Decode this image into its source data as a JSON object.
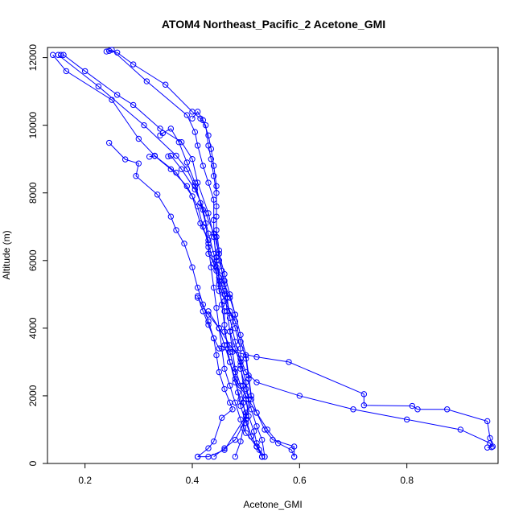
{
  "chart_data": {
    "type": "line",
    "title": "ATOM4 Northeast_Pacific_2 Acetone_GMI",
    "xlabel": "Acetone_GMI",
    "ylabel": "Altitude (m)",
    "xlim": [
      0.13,
      0.97
    ],
    "ylim": [
      0,
      12300
    ],
    "xticks": [
      0.2,
      0.4,
      0.6,
      0.8
    ],
    "yticks": [
      0,
      2000,
      4000,
      6000,
      8000,
      10000,
      12000
    ],
    "grid": false,
    "legend": "none",
    "color": "#0000ff",
    "marker": "open-circle",
    "series": [
      {
        "points": [
          [
            0.14,
            12080
          ],
          [
            0.165,
            11600
          ],
          [
            0.25,
            10750
          ],
          [
            0.3,
            9600
          ],
          [
            0.33,
            9100
          ],
          [
            0.37,
            8600
          ],
          [
            0.4,
            7900
          ],
          [
            0.415,
            7100
          ],
          [
            0.43,
            6600
          ],
          [
            0.43,
            6200
          ],
          [
            0.445,
            5800
          ],
          [
            0.46,
            5300
          ],
          [
            0.47,
            4900
          ],
          [
            0.48,
            4400
          ],
          [
            0.47,
            3900
          ],
          [
            0.48,
            3400
          ],
          [
            0.49,
            2900
          ],
          [
            0.495,
            2300
          ],
          [
            0.5,
            1900
          ],
          [
            0.505,
            1400
          ],
          [
            0.515,
            950
          ],
          [
            0.52,
            600
          ],
          [
            0.525,
            400
          ],
          [
            0.53,
            200
          ]
        ]
      },
      {
        "points": [
          [
            0.15,
            12080
          ],
          [
            0.225,
            11150
          ],
          [
            0.31,
            10000
          ],
          [
            0.37,
            9100
          ],
          [
            0.39,
            8700
          ],
          [
            0.405,
            8200
          ],
          [
            0.42,
            7500
          ],
          [
            0.43,
            6800
          ],
          [
            0.44,
            6200
          ],
          [
            0.445,
            5700
          ],
          [
            0.45,
            5100
          ],
          [
            0.46,
            4500
          ],
          [
            0.46,
            3900
          ],
          [
            0.47,
            3300
          ],
          [
            0.48,
            2700
          ],
          [
            0.485,
            2100
          ],
          [
            0.49,
            1700
          ],
          [
            0.5,
            1200
          ],
          [
            0.51,
            800
          ],
          [
            0.52,
            500
          ],
          [
            0.535,
            200
          ]
        ]
      },
      {
        "points": [
          [
            0.155,
            12080
          ],
          [
            0.16,
            12080
          ],
          [
            0.2,
            11600
          ],
          [
            0.26,
            10900
          ],
          [
            0.29,
            10600
          ],
          [
            0.34,
            9900
          ],
          [
            0.38,
            9500
          ],
          [
            0.4,
            9000
          ],
          [
            0.41,
            8300
          ],
          [
            0.43,
            7400
          ],
          [
            0.44,
            6700
          ],
          [
            0.445,
            6100
          ],
          [
            0.45,
            5500
          ],
          [
            0.46,
            5000
          ],
          [
            0.47,
            4500
          ],
          [
            0.48,
            4000
          ],
          [
            0.49,
            3400
          ],
          [
            0.49,
            2800
          ],
          [
            0.5,
            2200
          ],
          [
            0.51,
            1600
          ],
          [
            0.52,
            1100
          ],
          [
            0.53,
            700
          ],
          [
            0.535,
            200
          ]
        ]
      },
      {
        "points": [
          [
            0.24,
            12180
          ],
          [
            0.25,
            12230
          ],
          [
            0.315,
            11300
          ],
          [
            0.39,
            10300
          ],
          [
            0.405,
            9800
          ],
          [
            0.41,
            9400
          ],
          [
            0.42,
            8800
          ],
          [
            0.43,
            8300
          ],
          [
            0.44,
            7800
          ],
          [
            0.44,
            7200
          ],
          [
            0.44,
            6700
          ],
          [
            0.445,
            6000
          ],
          [
            0.45,
            5400
          ],
          [
            0.46,
            4800
          ],
          [
            0.48,
            4200
          ],
          [
            0.49,
            3600
          ],
          [
            0.5,
            3100
          ],
          [
            0.505,
            2500
          ],
          [
            0.51,
            1900
          ],
          [
            0.5,
            1400
          ],
          [
            0.46,
            400
          ],
          [
            0.43,
            200
          ],
          [
            0.41,
            200
          ]
        ]
      },
      {
        "points": [
          [
            0.245,
            12200
          ],
          [
            0.26,
            12150
          ],
          [
            0.29,
            11800
          ],
          [
            0.35,
            11200
          ],
          [
            0.4,
            10400
          ],
          [
            0.415,
            10200
          ],
          [
            0.425,
            10000
          ],
          [
            0.43,
            9400
          ],
          [
            0.435,
            9000
          ],
          [
            0.44,
            8500
          ],
          [
            0.445,
            8000
          ],
          [
            0.445,
            7300
          ],
          [
            0.445,
            6700
          ],
          [
            0.45,
            6000
          ],
          [
            0.46,
            5400
          ],
          [
            0.465,
            4900
          ],
          [
            0.47,
            4300
          ],
          [
            0.48,
            3600
          ],
          [
            0.49,
            3000
          ],
          [
            0.5,
            2400
          ],
          [
            0.505,
            1900
          ],
          [
            0.5,
            1300
          ],
          [
            0.48,
            700
          ],
          [
            0.46,
            450
          ],
          [
            0.44,
            200
          ]
        ]
      },
      {
        "points": [
          [
            0.245,
            9480
          ],
          [
            0.275,
            8990
          ],
          [
            0.3,
            8870
          ],
          [
            0.295,
            8500
          ],
          [
            0.335,
            7950
          ],
          [
            0.36,
            7300
          ],
          [
            0.37,
            6900
          ],
          [
            0.385,
            6500
          ],
          [
            0.4,
            5800
          ],
          [
            0.41,
            5200
          ],
          [
            0.42,
            4700
          ],
          [
            0.43,
            4200
          ],
          [
            0.44,
            3700
          ],
          [
            0.445,
            3200
          ],
          [
            0.45,
            2700
          ],
          [
            0.46,
            2200
          ],
          [
            0.47,
            1800
          ],
          [
            0.475,
            1600
          ],
          [
            0.455,
            1350
          ],
          [
            0.44,
            650
          ],
          [
            0.43,
            450
          ],
          [
            0.41,
            200
          ]
        ]
      },
      {
        "points": [
          [
            0.32,
            9070
          ],
          [
            0.33,
            9090
          ],
          [
            0.36,
            8700
          ],
          [
            0.39,
            8200
          ],
          [
            0.41,
            7600
          ],
          [
            0.42,
            7000
          ],
          [
            0.43,
            6500
          ],
          [
            0.44,
            5900
          ],
          [
            0.45,
            5300
          ],
          [
            0.455,
            4700
          ],
          [
            0.46,
            4100
          ],
          [
            0.465,
            3500
          ],
          [
            0.47,
            3000
          ],
          [
            0.48,
            2400
          ],
          [
            0.49,
            1900
          ],
          [
            0.5,
            1500
          ],
          [
            0.495,
            1050
          ],
          [
            0.49,
            650
          ],
          [
            0.48,
            200
          ]
        ]
      },
      {
        "points": [
          [
            0.355,
            9080
          ],
          [
            0.36,
            9100
          ],
          [
            0.38,
            8700
          ],
          [
            0.405,
            8100
          ],
          [
            0.425,
            7400
          ],
          [
            0.44,
            6800
          ],
          [
            0.45,
            6200
          ],
          [
            0.46,
            5600
          ],
          [
            0.47,
            5000
          ],
          [
            0.48,
            4400
          ],
          [
            0.49,
            3800
          ],
          [
            0.5,
            3200
          ],
          [
            0.505,
            2600
          ],
          [
            0.51,
            2000
          ],
          [
            0.52,
            1500
          ],
          [
            0.535,
            1000
          ],
          [
            0.55,
            700
          ],
          [
            0.59,
            500
          ],
          [
            0.59,
            200
          ]
        ]
      },
      {
        "points": [
          [
            0.34,
            9700
          ],
          [
            0.345,
            9770
          ],
          [
            0.36,
            9900
          ],
          [
            0.375,
            9500
          ],
          [
            0.39,
            8900
          ],
          [
            0.405,
            8300
          ],
          [
            0.415,
            7700
          ],
          [
            0.425,
            7100
          ],
          [
            0.43,
            6400
          ],
          [
            0.435,
            5800
          ],
          [
            0.44,
            5200
          ],
          [
            0.445,
            4600
          ],
          [
            0.45,
            4000
          ],
          [
            0.455,
            3400
          ],
          [
            0.46,
            2800
          ],
          [
            0.47,
            2300
          ],
          [
            0.48,
            1800
          ],
          [
            0.49,
            1300
          ],
          [
            0.5,
            900
          ],
          [
            0.52,
            500
          ],
          [
            0.53,
            200
          ]
        ]
      },
      {
        "points": [
          [
            0.4,
            10200
          ],
          [
            0.41,
            10400
          ],
          [
            0.42,
            10150
          ],
          [
            0.43,
            9700
          ],
          [
            0.435,
            9300
          ],
          [
            0.44,
            8800
          ],
          [
            0.445,
            8200
          ],
          [
            0.445,
            7600
          ],
          [
            0.445,
            6900
          ],
          [
            0.45,
            6300
          ],
          [
            0.455,
            5700
          ],
          [
            0.46,
            5100
          ],
          [
            0.465,
            4500
          ],
          [
            0.47,
            3900
          ],
          [
            0.475,
            3300
          ],
          [
            0.48,
            2800
          ],
          [
            0.49,
            2300
          ],
          [
            0.495,
            1800
          ],
          [
            0.5,
            1300
          ],
          [
            0.51,
            800
          ],
          [
            0.52,
            500
          ],
          [
            0.53,
            200
          ]
        ]
      },
      {
        "points": [
          [
            0.41,
            4950
          ],
          [
            0.42,
            4500
          ],
          [
            0.43,
            4100
          ],
          [
            0.44,
            3700
          ],
          [
            0.45,
            3400
          ],
          [
            0.52,
            3150
          ],
          [
            0.58,
            3000
          ],
          [
            0.72,
            2050
          ],
          [
            0.72,
            1720
          ],
          [
            0.81,
            1700
          ],
          [
            0.82,
            1600
          ],
          [
            0.875,
            1600
          ],
          [
            0.95,
            1250
          ],
          [
            0.955,
            750
          ],
          [
            0.96,
            500
          ],
          [
            0.95,
            470
          ]
        ]
      },
      {
        "points": [
          [
            0.41,
            4900
          ],
          [
            0.43,
            4400
          ],
          [
            0.45,
            4000
          ],
          [
            0.47,
            3500
          ],
          [
            0.49,
            3100
          ],
          [
            0.5,
            2700
          ],
          [
            0.52,
            2400
          ],
          [
            0.6,
            2000
          ],
          [
            0.7,
            1600
          ],
          [
            0.8,
            1300
          ],
          [
            0.9,
            1000
          ],
          [
            0.955,
            600
          ],
          [
            0.958,
            480
          ]
        ]
      },
      {
        "points": [
          [
            0.43,
            4500
          ],
          [
            0.45,
            4000
          ],
          [
            0.46,
            3500
          ],
          [
            0.47,
            3000
          ],
          [
            0.48,
            2500
          ],
          [
            0.5,
            2000
          ],
          [
            0.52,
            1500
          ],
          [
            0.54,
            1000
          ],
          [
            0.56,
            600
          ],
          [
            0.585,
            400
          ],
          [
            0.59,
            200
          ]
        ]
      }
    ]
  }
}
